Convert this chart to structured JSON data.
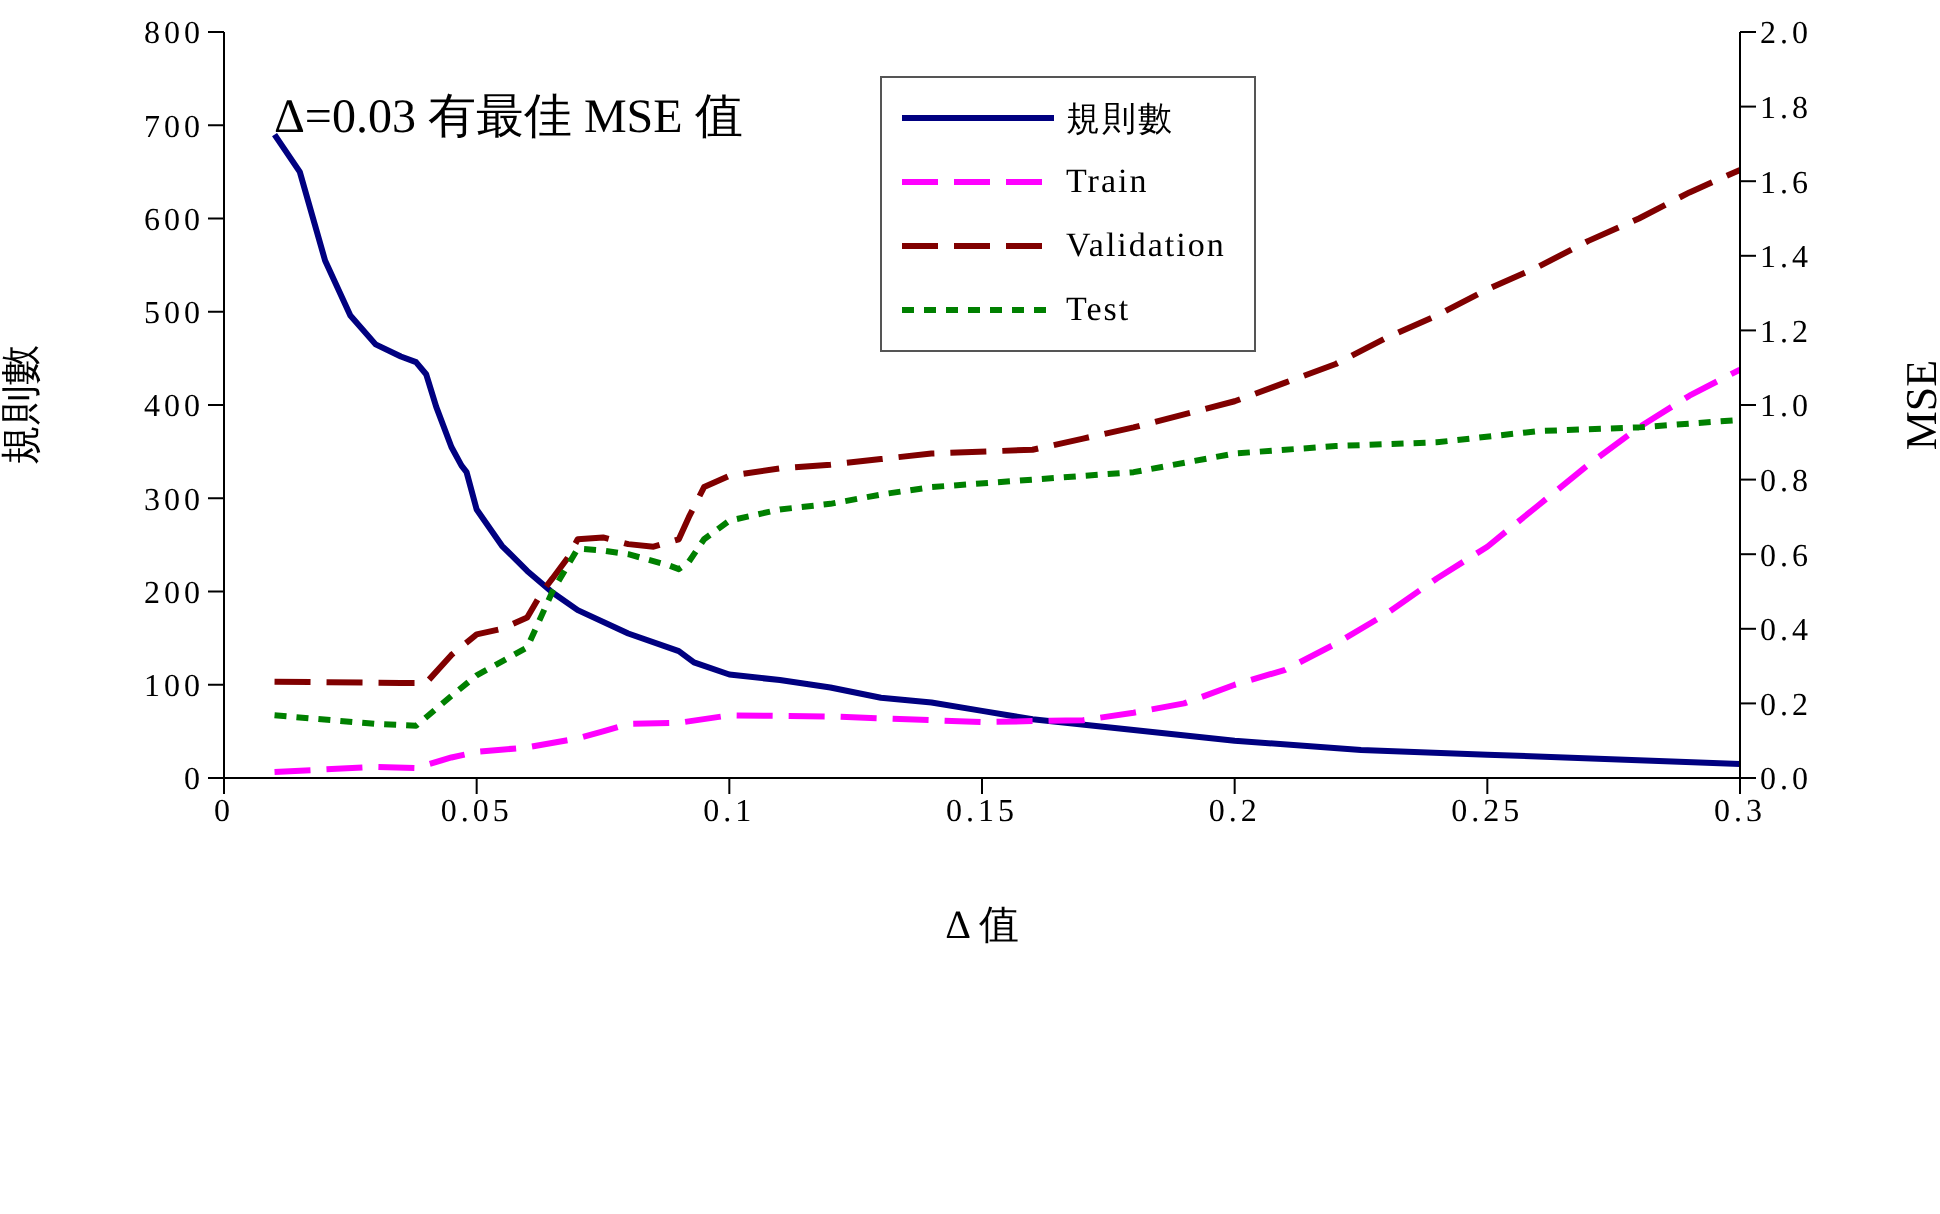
{
  "chart_data": {
    "type": "line",
    "xlabel": "Δ 值",
    "ylabel": "規則數",
    "y2label": "MSE",
    "annotations": [
      "Δ=0.03 有最佳 MSE 值"
    ],
    "xlim": [
      0,
      0.3
    ],
    "xticks": [
      0,
      0.05,
      0.1,
      0.15,
      0.2,
      0.25,
      0.3
    ],
    "ylim": [
      0,
      800
    ],
    "yticks": [
      0,
      100,
      200,
      300,
      400,
      500,
      600,
      700,
      800
    ],
    "y2lim": [
      0,
      2
    ],
    "y2ticks": [
      {
        "value": 0,
        "label": "0.0"
      },
      {
        "value": 0.2,
        "label": "0.2"
      },
      {
        "value": 0.4,
        "label": "0.4"
      },
      {
        "value": 0.6,
        "label": "0.6"
      },
      {
        "value": 0.8,
        "label": "0.8"
      },
      {
        "value": 1,
        "label": "1.0"
      },
      {
        "value": 1.2,
        "label": "1.2"
      },
      {
        "value": 1.4,
        "label": "1.4"
      },
      {
        "value": 1.6,
        "label": "1.6"
      },
      {
        "value": 1.8,
        "label": "1.8"
      },
      {
        "value": 2,
        "label": "2.0"
      }
    ],
    "grid": false,
    "legend": "top",
    "marker": "none",
    "series": [
      {
        "name": "規則數",
        "color": "#000080",
        "line_style": "solid",
        "x": [
          0.01,
          0.015,
          0.02,
          0.025,
          0.03,
          0.035,
          0.038,
          0.04,
          0.042,
          0.045,
          0.047,
          0.048,
          0.05,
          0.055,
          0.06,
          0.065,
          0.07,
          0.08,
          0.09,
          0.093,
          0.1,
          0.11,
          0.12,
          0.13,
          0.14,
          0.15,
          0.16,
          0.2,
          0.225,
          0.25,
          0.3
        ],
        "values": [
          690,
          650,
          555,
          496,
          465,
          452,
          446,
          433,
          398,
          355,
          335,
          328,
          288,
          249,
          222,
          199,
          180,
          155,
          136,
          124,
          111,
          105,
          97,
          86,
          81,
          72,
          63,
          40,
          30,
          25,
          15
        ]
      },
      {
        "name": "Train",
        "color": "#ff00ff",
        "line_style": "dashed",
        "x": [
          0.01,
          0.03,
          0.038,
          0.045,
          0.05,
          0.06,
          0.07,
          0.075,
          0.08,
          0.09,
          0.1,
          0.12,
          0.14,
          0.15,
          0.17,
          0.18,
          0.19,
          0.2,
          0.21,
          0.22,
          0.23,
          0.24,
          0.25,
          0.26,
          0.27,
          0.28,
          0.29,
          0.3
        ],
        "values": [
          0.016,
          0.03,
          0.027,
          0.055,
          0.07,
          0.082,
          0.106,
          0.125,
          0.145,
          0.148,
          0.168,
          0.165,
          0.155,
          0.15,
          0.155,
          0.175,
          0.2,
          0.25,
          0.29,
          0.36,
          0.44,
          0.535,
          0.62,
          0.73,
          0.84,
          0.94,
          1.025,
          1.095
        ],
        "axis": "y2"
      },
      {
        "name": "Validation",
        "color": "#800000",
        "line_style": "dashed",
        "x": [
          0.01,
          0.035,
          0.04,
          0.045,
          0.05,
          0.055,
          0.06,
          0.063,
          0.065,
          0.068,
          0.07,
          0.075,
          0.08,
          0.085,
          0.09,
          0.092,
          0.095,
          0.1,
          0.11,
          0.12,
          0.13,
          0.14,
          0.16,
          0.17,
          0.18,
          0.19,
          0.2,
          0.21,
          0.22,
          0.23,
          0.24,
          0.25,
          0.26,
          0.27,
          0.28,
          0.29,
          0.3
        ],
        "values": [
          0.258,
          0.255,
          0.255,
          0.33,
          0.385,
          0.4,
          0.43,
          0.5,
          0.535,
          0.59,
          0.64,
          0.645,
          0.627,
          0.62,
          0.64,
          0.7,
          0.78,
          0.81,
          0.83,
          0.84,
          0.855,
          0.87,
          0.88,
          0.91,
          0.94,
          0.975,
          1.01,
          1.06,
          1.11,
          1.18,
          1.24,
          1.31,
          1.37,
          1.44,
          1.5,
          1.57,
          1.63
        ],
        "axis": "y2"
      },
      {
        "name": "Test",
        "color": "#008000",
        "line_style": "dotted",
        "x": [
          0.01,
          0.03,
          0.038,
          0.045,
          0.05,
          0.06,
          0.065,
          0.07,
          0.075,
          0.08,
          0.088,
          0.09,
          0.092,
          0.095,
          0.1,
          0.11,
          0.12,
          0.13,
          0.14,
          0.16,
          0.18,
          0.2,
          0.22,
          0.24,
          0.26,
          0.28,
          0.3
        ],
        "values": [
          0.168,
          0.145,
          0.14,
          0.22,
          0.275,
          0.35,
          0.5,
          0.615,
          0.61,
          0.6,
          0.57,
          0.56,
          0.58,
          0.64,
          0.69,
          0.72,
          0.735,
          0.76,
          0.78,
          0.8,
          0.82,
          0.87,
          0.89,
          0.9,
          0.93,
          0.94,
          0.96
        ],
        "axis": "y2"
      }
    ]
  }
}
